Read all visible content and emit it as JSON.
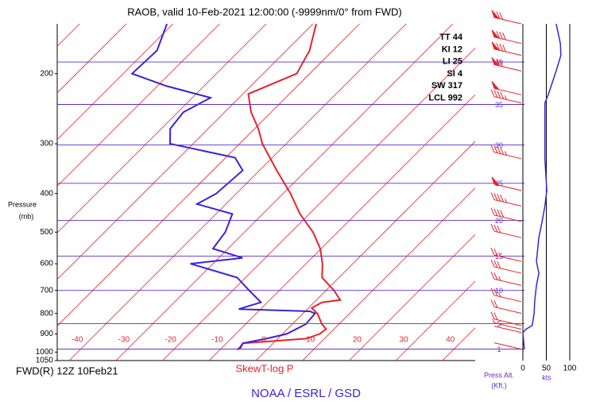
{
  "chart_data": {
    "type": "skewt",
    "title": "RAOB, valid 10-Feb-2021 12:00:00 (-9999nm/0° from FWD)",
    "ylabel": [
      "Pressure",
      "(mb)"
    ],
    "ylog": true,
    "ylim": [
      150,
      1050
    ],
    "yticks": [
      200,
      300,
      400,
      500,
      600,
      700,
      800,
      900,
      1000,
      1050
    ],
    "xticks": [
      -40,
      -30,
      -20,
      -10,
      0,
      10,
      20,
      30,
      40
    ],
    "isotherms": [
      -110,
      -100,
      -90,
      -80,
      -70,
      -60,
      -50,
      -40,
      -30,
      -20,
      -10,
      0,
      10,
      20,
      30,
      40
    ],
    "isotherm_color": "#e8232a",
    "series": [
      {
        "color": "#e8232a",
        "pressure": [
          150,
          175,
          200,
          225,
          250,
          275,
          300,
          350,
          400,
          450,
          500,
          550,
          600,
          650,
          700,
          740,
          750,
          775,
          800,
          850,
          875,
          900,
          925,
          950,
          975,
          985
        ],
        "values": [
          -59.3,
          -55.0,
          -52.8,
          -58.8,
          -54.3,
          -49.2,
          -45.1,
          -36.3,
          -28.4,
          -22.0,
          -15.3,
          -10.2,
          -6.5,
          -3.6,
          1.7,
          5.1,
          1.7,
          0.7,
          3.1,
          6.3,
          8.3,
          8.0,
          6.1,
          -6.5,
          -6.0,
          -6.5
        ]
      },
      {
        "color": "#3b22d6",
        "pressure": [
          150,
          175,
          200,
          215,
          230,
          250,
          275,
          300,
          325,
          350,
          400,
          425,
          450,
          500,
          550,
          580,
          600,
          650,
          700,
          750,
          780,
          790,
          800,
          850,
          900,
          925,
          950,
          985
        ],
        "values": [
          -91.3,
          -87.7,
          -88.1,
          -78.0,
          -66.1,
          -68.8,
          -68.1,
          -64.9,
          -48.0,
          -43.6,
          -44.3,
          -46.2,
          -36.5,
          -34.1,
          -33.2,
          -24.9,
          -34.8,
          -21.8,
          -16.5,
          -11.4,
          -14.7,
          1.0,
          2.6,
          2.9,
          0.9,
          -2.4,
          -6.5,
          -6.1
        ]
      }
    ],
    "indices": [
      {
        "name": "TT",
        "value": 44
      },
      {
        "name": "KI",
        "value": 12
      },
      {
        "name": "LI",
        "value": 25
      },
      {
        "name": "SI",
        "value": 4
      },
      {
        "name": "SW",
        "value": 317
      },
      {
        "name": "LCL",
        "value": 992
      }
    ],
    "altitude": {
      "label": [
        "Press Alt.",
        "(Kft.)"
      ],
      "color": "#5a2fc8",
      "kft": [
        40,
        35,
        30,
        25,
        20,
        15,
        10,
        5,
        1
      ],
      "pressure": [
        187,
        239,
        302,
        377,
        467,
        574,
        700,
        848,
        983
      ]
    },
    "wind": {
      "xlabel": "kts",
      "xlim": [
        0,
        100
      ],
      "xticks": [
        0,
        50,
        100
      ],
      "color": "#3b22d6",
      "barb_color": "#e8232a",
      "pressure": [
        150,
        168,
        180,
        197,
        226,
        237,
        327,
        393,
        430,
        470,
        516,
        592,
        634,
        680,
        747,
        799,
        857,
        876,
        893,
        983
      ],
      "speed": [
        71,
        80,
        81,
        71,
        54,
        47,
        47,
        51,
        47,
        41,
        34,
        29,
        34,
        29,
        25,
        24,
        20,
        7,
        0,
        3
      ]
    },
    "station": "FWD(R) 12Z 10Feb21",
    "diagram": "SkewT-log P",
    "credit": "NOAA / ESRL / GSD"
  }
}
